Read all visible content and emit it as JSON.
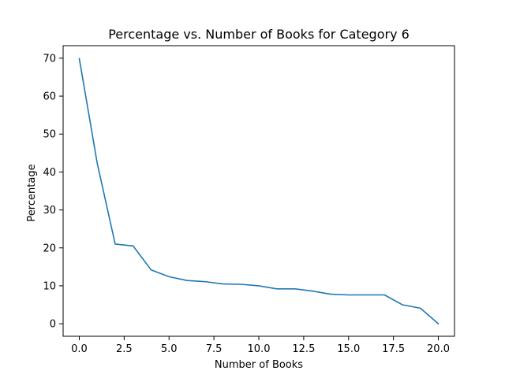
{
  "chart_data": {
    "type": "line",
    "title": "Percentage vs. Number of Books for Category 6",
    "xlabel": "Number of Books",
    "ylabel": "Percentage",
    "xlim": [
      -0.9,
      20.9
    ],
    "ylim": [
      -3.3,
      73.3
    ],
    "xticks": [
      0.0,
      2.5,
      5.0,
      7.5,
      10.0,
      12.5,
      15.0,
      17.5,
      20.0
    ],
    "xtick_labels": [
      "0.0",
      "2.5",
      "5.0",
      "7.5",
      "10.0",
      "12.5",
      "15.0",
      "17.5",
      "20.0"
    ],
    "yticks": [
      0,
      10,
      20,
      30,
      40,
      50,
      60,
      70
    ],
    "ytick_labels": [
      "0",
      "10",
      "20",
      "30",
      "40",
      "50",
      "60",
      "70"
    ],
    "grid": false,
    "series": [
      {
        "color": "#1f77b4",
        "x": [
          0,
          1,
          2,
          3,
          4,
          5,
          6,
          7,
          8,
          9,
          10,
          11,
          12,
          13,
          14,
          15,
          16,
          17,
          18,
          19,
          20
        ],
        "y": [
          69.9,
          42.3,
          21.0,
          20.5,
          14.2,
          12.4,
          11.4,
          11.1,
          10.5,
          10.4,
          10.0,
          9.2,
          9.2,
          8.6,
          7.8,
          7.6,
          7.6,
          7.6,
          5.0,
          4.1,
          0.0
        ]
      }
    ]
  }
}
